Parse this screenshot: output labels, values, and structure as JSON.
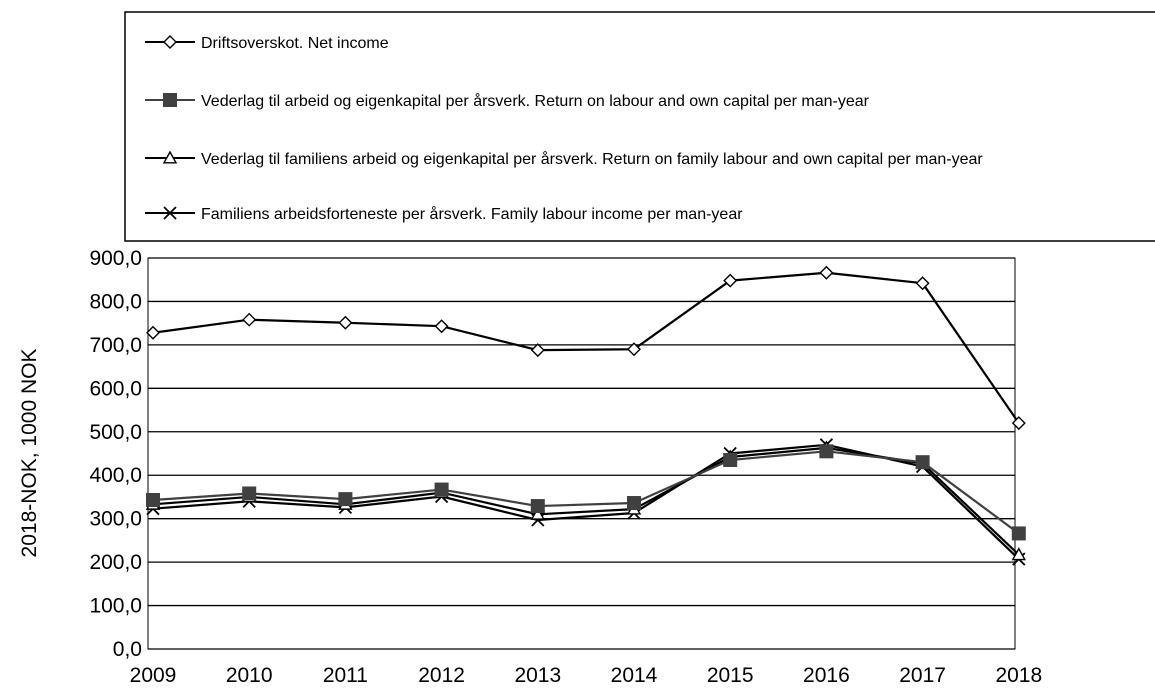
{
  "chart_data": {
    "type": "line",
    "title": "",
    "ylabel": "2018-NOK, 1000 NOK",
    "xlabel": "",
    "ylim": [
      0,
      900
    ],
    "ytick_step": 100,
    "ytick_labels": [
      "0,0",
      "100,0",
      "200,0",
      "300,0",
      "400,0",
      "500,0",
      "600,0",
      "700,0",
      "800,0",
      "900,0"
    ],
    "grid": "horizontal",
    "legend_position": "top",
    "categories": [
      "2009",
      "2010",
      "2011",
      "2012",
      "2013",
      "2014",
      "2015",
      "2016",
      "2017",
      "2018"
    ],
    "series": [
      {
        "name": "Driftsoverskot. Net income",
        "marker": "diamond-open",
        "color": "#000000",
        "values": [
          728,
          758,
          751,
          743,
          688,
          690,
          848,
          866,
          842,
          520
        ]
      },
      {
        "name": "Vederlag til arbeid og eigenkapital per årsverk. Return on labour and own capital per man-year",
        "marker": "square-filled",
        "color": "#404040",
        "values": [
          343,
          358,
          345,
          367,
          329,
          336,
          435,
          455,
          430,
          266
        ]
      },
      {
        "name": "Vederlag til familiens arbeid og eigenkapital per årsverk. Return on family labour and own capital per man-year",
        "marker": "triangle-open",
        "color": "#000000",
        "values": [
          333,
          350,
          333,
          360,
          310,
          322,
          442,
          463,
          427,
          217
        ]
      },
      {
        "name": "Familiens arbeidsforteneste per årsverk.  Family labour income per man-year",
        "marker": "x",
        "color": "#000000",
        "values": [
          323,
          340,
          326,
          351,
          297,
          313,
          450,
          470,
          420,
          207
        ]
      }
    ]
  }
}
